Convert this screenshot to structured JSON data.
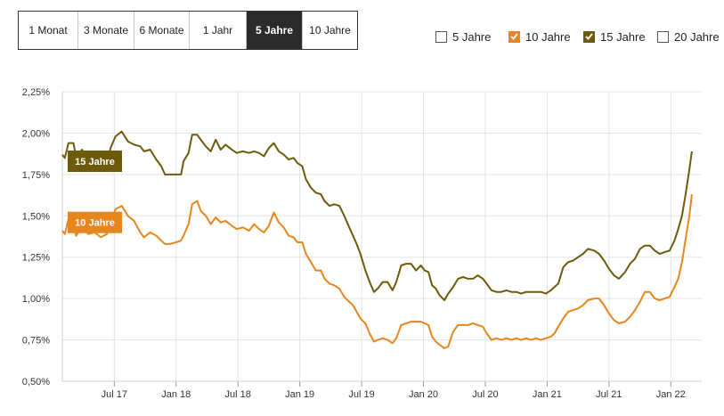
{
  "range_tabs": [
    {
      "label": "1 Monat",
      "active": false
    },
    {
      "label": "3 Monate",
      "active": false
    },
    {
      "label": "6 Monate",
      "active": false
    },
    {
      "label": "1 Jahr",
      "active": false
    },
    {
      "label": "5 Jahre",
      "active": true
    },
    {
      "label": "10 Jahre",
      "active": false
    }
  ],
  "legend": [
    {
      "label": "5 Jahre",
      "checked": false,
      "color": "#555555"
    },
    {
      "label": "10 Jahre",
      "checked": true,
      "color": "#e8861e"
    },
    {
      "label": "15 Jahre",
      "checked": true,
      "color": "#6e5a0b"
    },
    {
      "label": "20 Jahre",
      "checked": false,
      "color": "#555555"
    }
  ],
  "chart_data": {
    "type": "line",
    "y_ticks": [
      "0,50%",
      "0,75%",
      "1,00%",
      "1,25%",
      "1,50%",
      "1,75%",
      "2,00%",
      "2,25%"
    ],
    "ylim": [
      0.5,
      2.25
    ],
    "x_ticks": [
      {
        "label": "Jul 17",
        "t": 2017.5
      },
      {
        "label": "Jan 18",
        "t": 2018.0
      },
      {
        "label": "Jul 18",
        "t": 2018.5
      },
      {
        "label": "Jan 19",
        "t": 2019.0
      },
      {
        "label": "Jul 19",
        "t": 2019.5
      },
      {
        "label": "Jan 20",
        "t": 2020.0
      },
      {
        "label": "Jul 20",
        "t": 2020.5
      },
      {
        "label": "Jan 21",
        "t": 2021.0
      },
      {
        "label": "Jul 21",
        "t": 2021.5
      },
      {
        "label": "Jan 22",
        "t": 2022.0
      }
    ],
    "xlim": [
      2017.08,
      2022.25
    ],
    "grid": true,
    "series": [
      {
        "name": "15 Jahre",
        "color": "#6e5a0b",
        "points": [
          [
            2017.08,
            1.87
          ],
          [
            2017.1,
            1.85
          ],
          [
            2017.13,
            1.94
          ],
          [
            2017.17,
            1.94
          ],
          [
            2017.19,
            1.86
          ],
          [
            2017.24,
            1.9
          ],
          [
            2017.29,
            1.84
          ],
          [
            2017.34,
            1.86
          ],
          [
            2017.39,
            1.84
          ],
          [
            2017.44,
            1.82
          ],
          [
            2017.47,
            1.91
          ],
          [
            2017.51,
            1.98
          ],
          [
            2017.56,
            2.01
          ],
          [
            2017.61,
            1.95
          ],
          [
            2017.66,
            1.93
          ],
          [
            2017.71,
            1.92
          ],
          [
            2017.74,
            1.89
          ],
          [
            2017.79,
            1.9
          ],
          [
            2017.84,
            1.84
          ],
          [
            2017.88,
            1.8
          ],
          [
            2017.91,
            1.75
          ],
          [
            2017.95,
            1.75
          ],
          [
            2018.0,
            1.75
          ],
          [
            2018.04,
            1.75
          ],
          [
            2018.06,
            1.83
          ],
          [
            2018.1,
            1.88
          ],
          [
            2018.13,
            1.99
          ],
          [
            2018.17,
            1.99
          ],
          [
            2018.2,
            1.96
          ],
          [
            2018.24,
            1.92
          ],
          [
            2018.28,
            1.89
          ],
          [
            2018.32,
            1.96
          ],
          [
            2018.36,
            1.9
          ],
          [
            2018.4,
            1.93
          ],
          [
            2018.45,
            1.9
          ],
          [
            2018.49,
            1.88
          ],
          [
            2018.54,
            1.89
          ],
          [
            2018.59,
            1.88
          ],
          [
            2018.63,
            1.89
          ],
          [
            2018.67,
            1.88
          ],
          [
            2018.71,
            1.86
          ],
          [
            2018.75,
            1.91
          ],
          [
            2018.79,
            1.94
          ],
          [
            2018.83,
            1.89
          ],
          [
            2018.87,
            1.87
          ],
          [
            2018.91,
            1.84
          ],
          [
            2018.95,
            1.85
          ],
          [
            2018.98,
            1.82
          ],
          [
            2019.02,
            1.8
          ],
          [
            2019.05,
            1.72
          ],
          [
            2019.09,
            1.67
          ],
          [
            2019.13,
            1.64
          ],
          [
            2019.17,
            1.63
          ],
          [
            2019.2,
            1.59
          ],
          [
            2019.24,
            1.56
          ],
          [
            2019.28,
            1.57
          ],
          [
            2019.32,
            1.56
          ],
          [
            2019.36,
            1.5
          ],
          [
            2019.4,
            1.43
          ],
          [
            2019.43,
            1.38
          ],
          [
            2019.46,
            1.33
          ],
          [
            2019.49,
            1.27
          ],
          [
            2019.53,
            1.17
          ],
          [
            2019.57,
            1.09
          ],
          [
            2019.6,
            1.04
          ],
          [
            2019.63,
            1.06
          ],
          [
            2019.67,
            1.1
          ],
          [
            2019.71,
            1.1
          ],
          [
            2019.75,
            1.05
          ],
          [
            2019.78,
            1.1
          ],
          [
            2019.82,
            1.2
          ],
          [
            2019.86,
            1.21
          ],
          [
            2019.9,
            1.21
          ],
          [
            2019.94,
            1.17
          ],
          [
            2019.98,
            1.2
          ],
          [
            2020.01,
            1.17
          ],
          [
            2020.04,
            1.16
          ],
          [
            2020.07,
            1.08
          ],
          [
            2020.1,
            1.06
          ],
          [
            2020.13,
            1.02
          ],
          [
            2020.17,
            0.99
          ],
          [
            2020.2,
            1.03
          ],
          [
            2020.24,
            1.07
          ],
          [
            2020.28,
            1.12
          ],
          [
            2020.32,
            1.13
          ],
          [
            2020.36,
            1.12
          ],
          [
            2020.4,
            1.12
          ],
          [
            2020.44,
            1.14
          ],
          [
            2020.48,
            1.12
          ],
          [
            2020.51,
            1.09
          ],
          [
            2020.55,
            1.05
          ],
          [
            2020.59,
            1.04
          ],
          [
            2020.63,
            1.04
          ],
          [
            2020.67,
            1.05
          ],
          [
            2020.71,
            1.04
          ],
          [
            2020.75,
            1.04
          ],
          [
            2020.79,
            1.03
          ],
          [
            2020.83,
            1.04
          ],
          [
            2020.87,
            1.04
          ],
          [
            2020.91,
            1.04
          ],
          [
            2020.95,
            1.04
          ],
          [
            2020.99,
            1.03
          ],
          [
            2021.03,
            1.05
          ],
          [
            2021.06,
            1.07
          ],
          [
            2021.09,
            1.09
          ],
          [
            2021.13,
            1.19
          ],
          [
            2021.17,
            1.22
          ],
          [
            2021.21,
            1.23
          ],
          [
            2021.25,
            1.25
          ],
          [
            2021.29,
            1.27
          ],
          [
            2021.33,
            1.3
          ],
          [
            2021.38,
            1.29
          ],
          [
            2021.42,
            1.27
          ],
          [
            2021.46,
            1.23
          ],
          [
            2021.5,
            1.18
          ],
          [
            2021.54,
            1.14
          ],
          [
            2021.58,
            1.12
          ],
          [
            2021.63,
            1.16
          ],
          [
            2021.67,
            1.21
          ],
          [
            2021.71,
            1.24
          ],
          [
            2021.75,
            1.3
          ],
          [
            2021.79,
            1.32
          ],
          [
            2021.83,
            1.32
          ],
          [
            2021.87,
            1.29
          ],
          [
            2021.91,
            1.27
          ],
          [
            2021.95,
            1.28
          ],
          [
            2021.99,
            1.29
          ],
          [
            2022.03,
            1.35
          ],
          [
            2022.06,
            1.42
          ],
          [
            2022.09,
            1.5
          ],
          [
            2022.12,
            1.63
          ],
          [
            2022.15,
            1.78
          ],
          [
            2022.17,
            1.89
          ]
        ]
      },
      {
        "name": "10 Jahre",
        "color": "#e8861e",
        "points": [
          [
            2017.08,
            1.41
          ],
          [
            2017.1,
            1.39
          ],
          [
            2017.13,
            1.48
          ],
          [
            2017.17,
            1.46
          ],
          [
            2017.19,
            1.38
          ],
          [
            2017.24,
            1.43
          ],
          [
            2017.29,
            1.39
          ],
          [
            2017.34,
            1.4
          ],
          [
            2017.39,
            1.37
          ],
          [
            2017.44,
            1.39
          ],
          [
            2017.47,
            1.46
          ],
          [
            2017.51,
            1.54
          ],
          [
            2017.56,
            1.56
          ],
          [
            2017.61,
            1.5
          ],
          [
            2017.66,
            1.47
          ],
          [
            2017.71,
            1.4
          ],
          [
            2017.74,
            1.37
          ],
          [
            2017.79,
            1.4
          ],
          [
            2017.84,
            1.38
          ],
          [
            2017.88,
            1.35
          ],
          [
            2017.91,
            1.33
          ],
          [
            2017.95,
            1.33
          ],
          [
            2018.0,
            1.34
          ],
          [
            2018.04,
            1.35
          ],
          [
            2018.06,
            1.38
          ],
          [
            2018.1,
            1.45
          ],
          [
            2018.13,
            1.57
          ],
          [
            2018.17,
            1.59
          ],
          [
            2018.2,
            1.53
          ],
          [
            2018.24,
            1.5
          ],
          [
            2018.28,
            1.45
          ],
          [
            2018.32,
            1.49
          ],
          [
            2018.36,
            1.46
          ],
          [
            2018.4,
            1.47
          ],
          [
            2018.45,
            1.44
          ],
          [
            2018.49,
            1.42
          ],
          [
            2018.54,
            1.43
          ],
          [
            2018.59,
            1.41
          ],
          [
            2018.63,
            1.45
          ],
          [
            2018.67,
            1.42
          ],
          [
            2018.71,
            1.4
          ],
          [
            2018.75,
            1.44
          ],
          [
            2018.79,
            1.52
          ],
          [
            2018.83,
            1.46
          ],
          [
            2018.87,
            1.43
          ],
          [
            2018.91,
            1.38
          ],
          [
            2018.95,
            1.37
          ],
          [
            2018.98,
            1.34
          ],
          [
            2019.02,
            1.34
          ],
          [
            2019.05,
            1.27
          ],
          [
            2019.09,
            1.22
          ],
          [
            2019.13,
            1.17
          ],
          [
            2019.17,
            1.17
          ],
          [
            2019.2,
            1.12
          ],
          [
            2019.24,
            1.09
          ],
          [
            2019.28,
            1.08
          ],
          [
            2019.32,
            1.06
          ],
          [
            2019.36,
            1.01
          ],
          [
            2019.4,
            0.98
          ],
          [
            2019.43,
            0.96
          ],
          [
            2019.46,
            0.92
          ],
          [
            2019.49,
            0.88
          ],
          [
            2019.53,
            0.85
          ],
          [
            2019.57,
            0.78
          ],
          [
            2019.6,
            0.74
          ],
          [
            2019.63,
            0.75
          ],
          [
            2019.67,
            0.76
          ],
          [
            2019.71,
            0.75
          ],
          [
            2019.75,
            0.73
          ],
          [
            2019.78,
            0.76
          ],
          [
            2019.82,
            0.84
          ],
          [
            2019.86,
            0.85
          ],
          [
            2019.9,
            0.86
          ],
          [
            2019.94,
            0.86
          ],
          [
            2019.98,
            0.86
          ],
          [
            2020.01,
            0.85
          ],
          [
            2020.04,
            0.84
          ],
          [
            2020.07,
            0.77
          ],
          [
            2020.1,
            0.74
          ],
          [
            2020.13,
            0.72
          ],
          [
            2020.17,
            0.7
          ],
          [
            2020.2,
            0.71
          ],
          [
            2020.24,
            0.8
          ],
          [
            2020.28,
            0.84
          ],
          [
            2020.32,
            0.84
          ],
          [
            2020.36,
            0.84
          ],
          [
            2020.4,
            0.85
          ],
          [
            2020.44,
            0.84
          ],
          [
            2020.48,
            0.83
          ],
          [
            2020.51,
            0.79
          ],
          [
            2020.55,
            0.75
          ],
          [
            2020.59,
            0.76
          ],
          [
            2020.63,
            0.75
          ],
          [
            2020.67,
            0.76
          ],
          [
            2020.71,
            0.75
          ],
          [
            2020.75,
            0.76
          ],
          [
            2020.79,
            0.75
          ],
          [
            2020.83,
            0.76
          ],
          [
            2020.87,
            0.75
          ],
          [
            2020.91,
            0.76
          ],
          [
            2020.95,
            0.75
          ],
          [
            2020.99,
            0.76
          ],
          [
            2021.03,
            0.77
          ],
          [
            2021.06,
            0.79
          ],
          [
            2021.09,
            0.83
          ],
          [
            2021.13,
            0.88
          ],
          [
            2021.17,
            0.92
          ],
          [
            2021.21,
            0.93
          ],
          [
            2021.25,
            0.94
          ],
          [
            2021.29,
            0.96
          ],
          [
            2021.33,
            0.99
          ],
          [
            2021.38,
            1.0
          ],
          [
            2021.42,
            1.0
          ],
          [
            2021.46,
            0.96
          ],
          [
            2021.5,
            0.91
          ],
          [
            2021.54,
            0.87
          ],
          [
            2021.58,
            0.85
          ],
          [
            2021.63,
            0.86
          ],
          [
            2021.67,
            0.89
          ],
          [
            2021.71,
            0.93
          ],
          [
            2021.75,
            0.98
          ],
          [
            2021.79,
            1.04
          ],
          [
            2021.83,
            1.04
          ],
          [
            2021.87,
            1.0
          ],
          [
            2021.91,
            0.99
          ],
          [
            2021.95,
            1.0
          ],
          [
            2021.99,
            1.01
          ],
          [
            2022.03,
            1.07
          ],
          [
            2022.06,
            1.12
          ],
          [
            2022.09,
            1.22
          ],
          [
            2022.12,
            1.36
          ],
          [
            2022.15,
            1.5
          ],
          [
            2022.17,
            1.63
          ]
        ]
      }
    ],
    "series_labels": [
      {
        "text": "15 Jahre",
        "series": "15 Jahre",
        "y": 1.83,
        "color": "#6e5a0b"
      },
      {
        "text": "10 Jahre",
        "series": "10 Jahre",
        "y": 1.46,
        "color": "#e8861e"
      }
    ]
  }
}
